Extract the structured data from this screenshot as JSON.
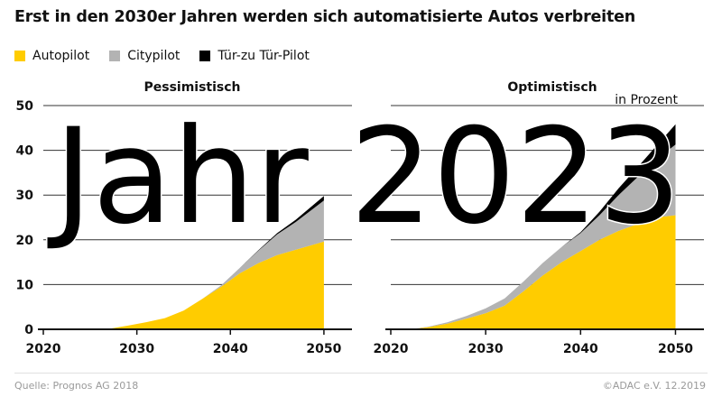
{
  "title": "Erst in den 2030er Jahren werden sich automatisierte Autos verbreiten",
  "unit_label": "in Prozent",
  "overlay_text": "Jahr 2023",
  "source": "Quelle: Prognos AG 2018",
  "credit": "©ADAC e.V.  12.2019",
  "colors": {
    "autopilot": "#ffcc00",
    "citypilot": "#b3b3b3",
    "tuerzutuer": "#000000",
    "grid": "#333333",
    "axis": "#111111"
  },
  "legend": [
    {
      "label": "Autopilot",
      "color": "#ffcc00"
    },
    {
      "label": "Citypilot",
      "color": "#b3b3b3"
    },
    {
      "label": "Tür-zu Tür-Pilot",
      "color": "#000000"
    }
  ],
  "chart_data": [
    {
      "type": "area",
      "stacked": true,
      "title": "Pessimistisch",
      "xlim": [
        2020,
        2053
      ],
      "ylim": [
        0,
        50
      ],
      "xticks": [
        2020,
        2030,
        2040,
        2050
      ],
      "yticks": [
        0,
        10,
        20,
        30,
        40,
        50
      ],
      "grid": true,
      "x": [
        2020,
        2025,
        2027,
        2029,
        2031,
        2033,
        2035,
        2037,
        2039,
        2041,
        2043,
        2045,
        2047,
        2050
      ],
      "series": [
        {
          "name": "Autopilot",
          "color": "#ffcc00",
          "values": [
            0,
            0,
            0.1,
            0.8,
            1.6,
            2.5,
            4.2,
            6.8,
            9.5,
            12.5,
            14.8,
            16.6,
            17.8,
            19.6
          ]
        },
        {
          "name": "Citypilot",
          "color": "#b3b3b3",
          "values": [
            0,
            0,
            0,
            0,
            0,
            0,
            0,
            0,
            0.3,
            1.2,
            2.8,
            4.6,
            6.2,
            9.2
          ]
        },
        {
          "name": "Tür-zu Tür-Pilot",
          "color": "#000000",
          "values": [
            0,
            0,
            0,
            0,
            0,
            0,
            0,
            0,
            0,
            0,
            0.1,
            0.3,
            0.5,
            1.0
          ]
        }
      ]
    },
    {
      "type": "area",
      "stacked": true,
      "title": "Optimistisch",
      "xlim": [
        2020,
        2053
      ],
      "ylim": [
        0,
        50
      ],
      "xticks": [
        2020,
        2030,
        2040,
        2050
      ],
      "yticks": [
        0,
        10,
        20,
        30,
        40,
        50
      ],
      "grid": true,
      "x": [
        2020,
        2022,
        2024,
        2026,
        2028,
        2030,
        2032,
        2034,
        2036,
        2038,
        2040,
        2042,
        2044,
        2046,
        2048,
        2050
      ],
      "series": [
        {
          "name": "Autopilot",
          "color": "#ffcc00",
          "values": [
            0,
            0,
            0.5,
            1.3,
            2.4,
            3.6,
            5.3,
            8.5,
            12.0,
            15.0,
            17.5,
            20.0,
            22.0,
            23.5,
            25.0,
            25.5
          ]
        },
        {
          "name": "Citypilot",
          "color": "#b3b3b3",
          "values": [
            0,
            0,
            0.1,
            0.3,
            0.6,
            1.1,
            1.6,
            2.2,
            2.8,
            3.4,
            4.0,
            5.5,
            8.0,
            10.5,
            13.0,
            15.8
          ]
        },
        {
          "name": "Tür-zu Tür-Pilot",
          "color": "#000000",
          "values": [
            0,
            0,
            0,
            0,
            0,
            0,
            0,
            0,
            0,
            0,
            0.2,
            0.8,
            1.5,
            2.2,
            3.0,
            4.5
          ]
        }
      ]
    }
  ]
}
